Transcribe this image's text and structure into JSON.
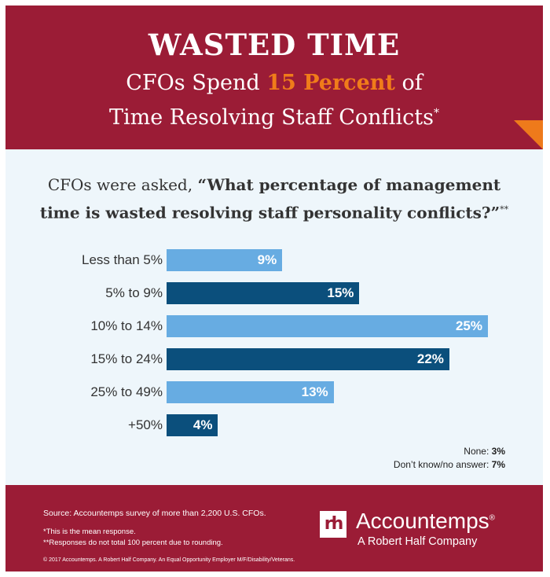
{
  "header": {
    "title": "WASTED TIME",
    "subtitle_before": "CFOs Spend ",
    "subtitle_highlight": "15 Percent",
    "subtitle_after": " of",
    "subtitle_line2": "Time Resolving Staff Conflicts",
    "subtitle_mark": "*"
  },
  "question": {
    "prefix": "CFOs were asked, ",
    "line1_bold": "“What percentage of management",
    "line2_bold": "time is wasted resolving staff personality conflicts?”",
    "mark": "**"
  },
  "colors": {
    "light": "#67ace2",
    "dark": "#0b4f7c",
    "header": "#9b1c36",
    "accent": "#f07c1a"
  },
  "chart_data": {
    "type": "bar",
    "orientation": "horizontal",
    "categories": [
      "Less than 5%",
      "5% to 9%",
      "10% to 14%",
      "15% to 24%",
      "25% to 49%",
      "+50%"
    ],
    "values": [
      9,
      15,
      25,
      22,
      13,
      4
    ],
    "value_labels": [
      "9%",
      "15%",
      "25%",
      "22%",
      "13%",
      "4%"
    ],
    "xlim": [
      0,
      25
    ]
  },
  "notes": [
    {
      "label": "None: ",
      "value": "3%"
    },
    {
      "label": "Don’t know/no answer: ",
      "value": "7%"
    }
  ],
  "footer": {
    "source": "Source: Accountemps survey of more than 2,200 U.S. CFOs.",
    "note1": "*This is the mean response.",
    "note2": "**Responses do not total 100 percent due to rounding.",
    "copyright": "© 2017 Accountemps. A Robert Half Company. An Equal Opportunity Employer M/F/Disability/Veterans.",
    "logo_mark": "rh",
    "brand": "Accountemps",
    "brand_mark": "®",
    "tagline": "A Robert Half Company"
  }
}
